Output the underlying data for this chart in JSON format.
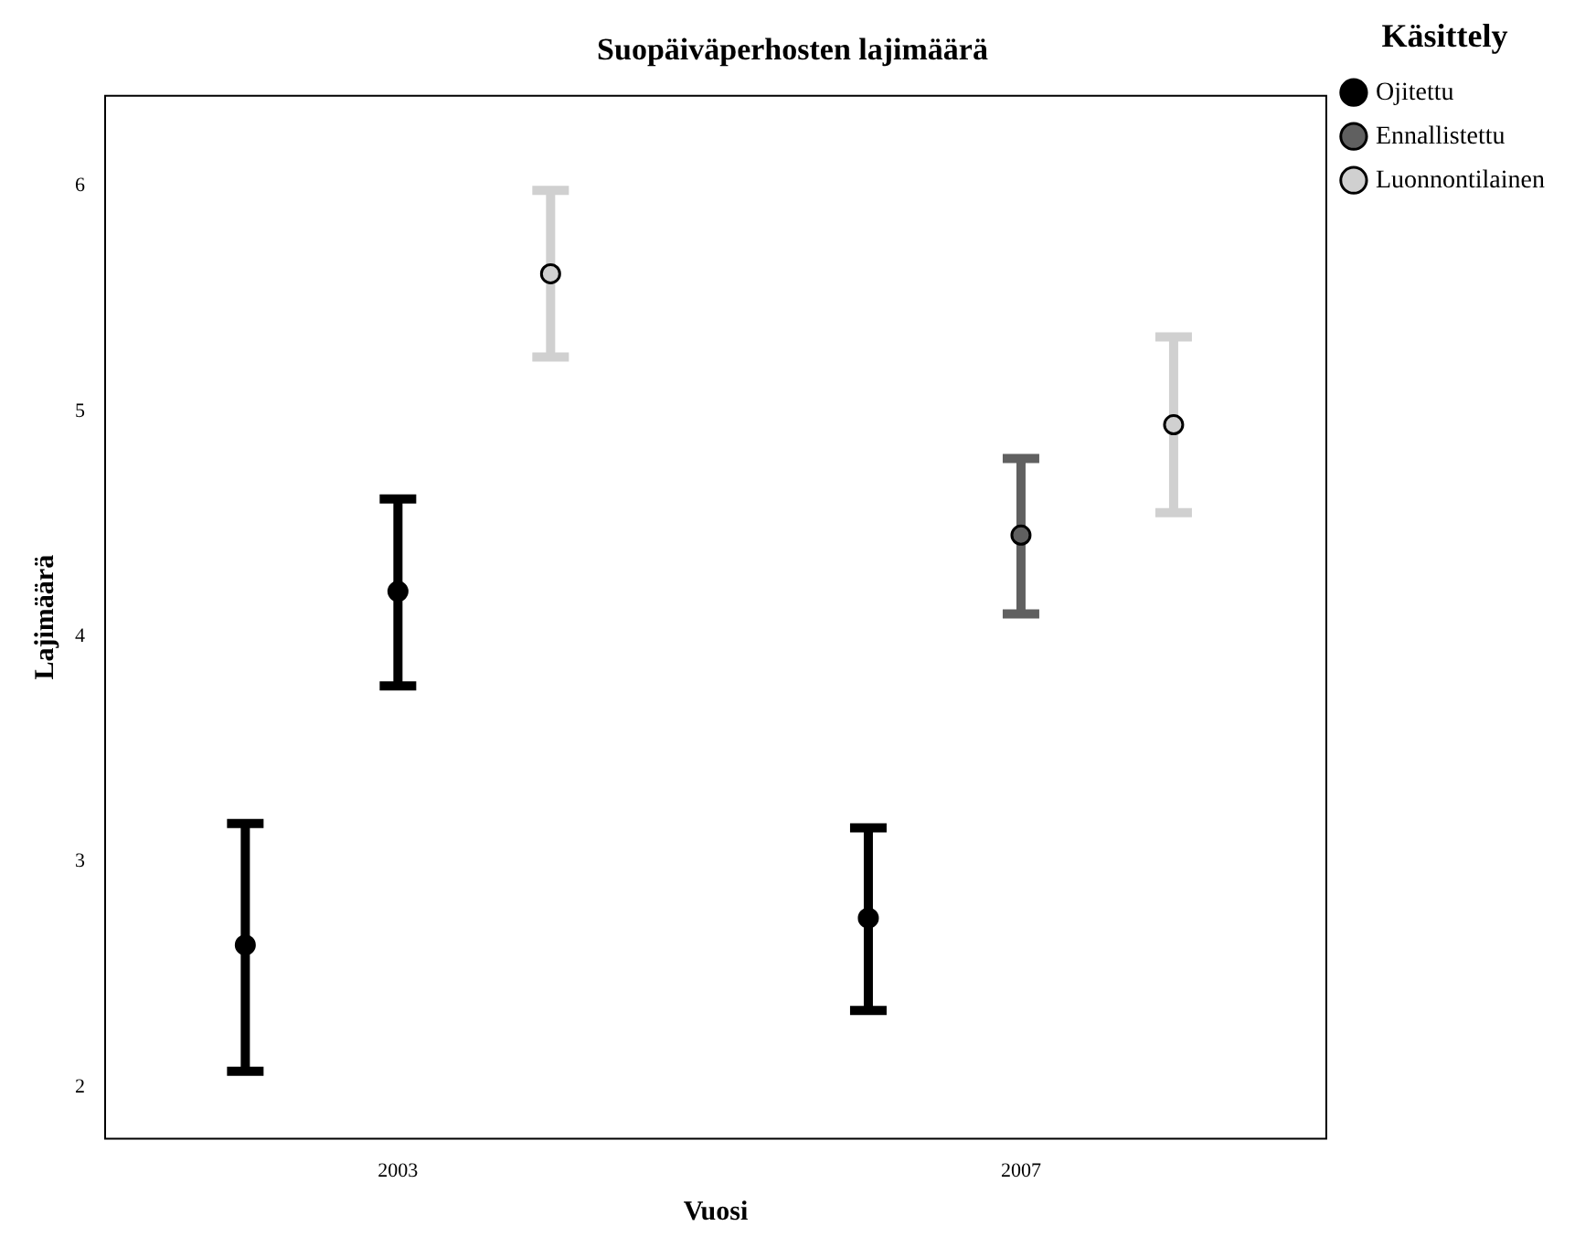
{
  "chart_data": {
    "type": "scatter",
    "title": "Suopäiväperhosten lajimäärä",
    "xlabel": "Vuosi",
    "ylabel": "Lajimäärä",
    "legend_title": "Käsittely",
    "categories": [
      "2003",
      "2007"
    ],
    "series": [
      {
        "name": "Ojitettu",
        "color": "#000000",
        "values": [
          2.63,
          2.75
        ],
        "errors": [
          [
            2.07,
            3.17
          ],
          [
            2.34,
            3.15
          ]
        ]
      },
      {
        "name": "Ennallistettu",
        "color": "#606060",
        "colors": [
          "#000000",
          "#606060"
        ],
        "values": [
          4.2,
          4.45
        ],
        "errors": [
          [
            3.78,
            4.61
          ],
          [
            4.1,
            4.79
          ]
        ]
      },
      {
        "name": "Luonnontilainen",
        "color": "#d0d0d0",
        "values": [
          5.61,
          4.94
        ],
        "errors": [
          [
            5.24,
            5.98
          ],
          [
            4.55,
            5.33
          ]
        ]
      }
    ],
    "ylim": [
      1.77,
      6.4
    ],
    "yticks": [
      2,
      3,
      4,
      5,
      6
    ],
    "grid": false,
    "legend": "right",
    "marker": "circle"
  }
}
